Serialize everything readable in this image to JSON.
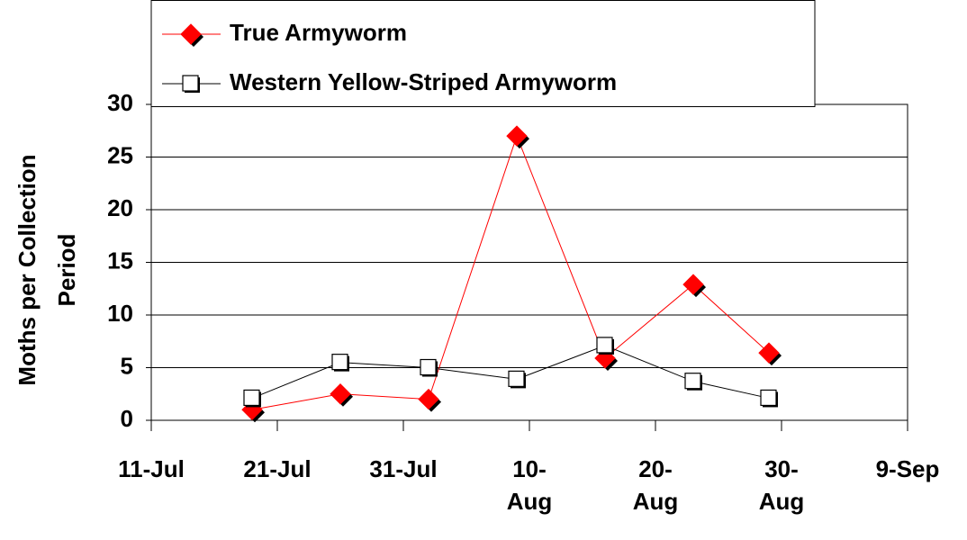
{
  "chart_data": {
    "type": "line",
    "y_label": "Moths per Collection Period",
    "x": [
      200,
      207,
      214,
      221,
      228,
      235,
      241
    ],
    "series": [
      {
        "name": "True Armyworm",
        "color": "#ff0000",
        "marker": "diamond",
        "values": [
          1,
          2.5,
          2,
          27,
          5.9,
          12.9,
          6.4
        ]
      },
      {
        "name": "Western Yellow-Striped Armyworm",
        "color": "#000000",
        "marker": "square",
        "values": [
          2.1,
          5.5,
          5,
          3.9,
          7.1,
          3.7,
          2.1
        ]
      }
    ],
    "xlim": [
      192,
      252
    ],
    "xticks": [
      {
        "value": 192,
        "label": "11-Jul"
      },
      {
        "value": 202,
        "label": "21-Jul"
      },
      {
        "value": 212,
        "label": "31-Jul"
      },
      {
        "value": 222,
        "label": "10-Aug"
      },
      {
        "value": 232,
        "label": "20-Aug"
      },
      {
        "value": 242,
        "label": "30-Aug"
      },
      {
        "value": 252,
        "label": "9-Sep"
      }
    ],
    "ylim": [
      0,
      30
    ],
    "yticks": [
      0,
      5,
      10,
      15,
      20,
      25,
      30
    ],
    "grid": true
  }
}
